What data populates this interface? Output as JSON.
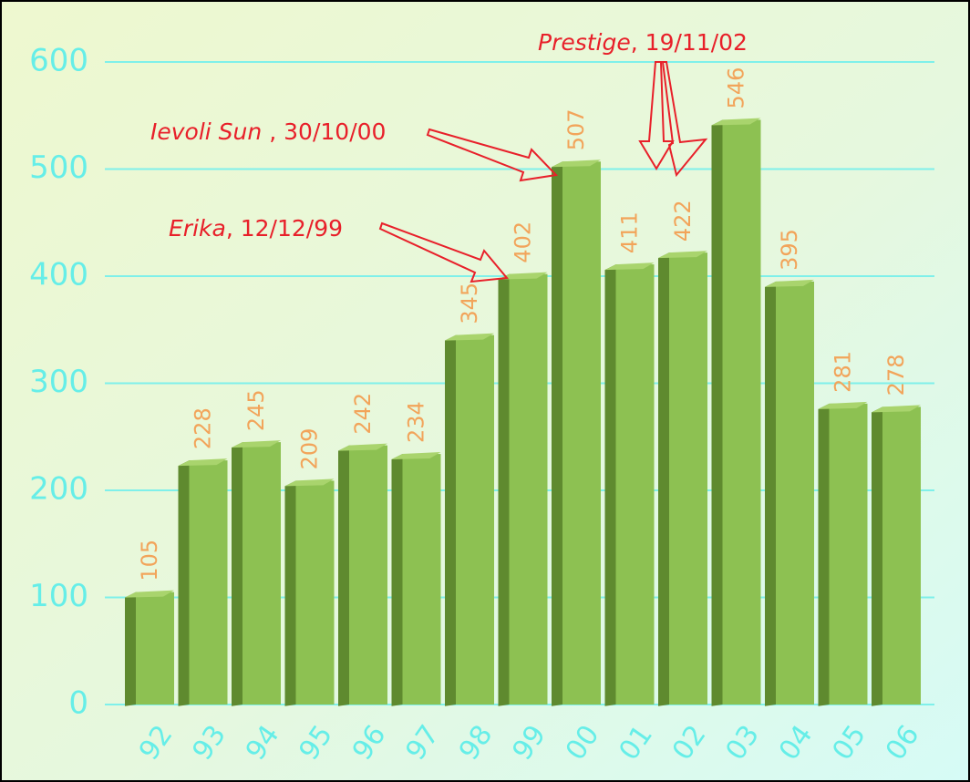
{
  "chart_data": {
    "type": "bar",
    "categories": [
      "92",
      "93",
      "94",
      "95",
      "96",
      "97",
      "98",
      "99",
      "00",
      "01",
      "02",
      "03",
      "04",
      "05",
      "06"
    ],
    "values": [
      105,
      228,
      245,
      209,
      242,
      234,
      345,
      402,
      507,
      411,
      422,
      546,
      395,
      281,
      278
    ],
    "color": "#8dc152",
    "ylim": [
      0,
      600
    ],
    "yticks": [
      0,
      100,
      200,
      300,
      400,
      500,
      600
    ],
    "grid": true,
    "annotations": [
      {
        "name": "Ievoli Sun",
        "date": ", 30/10/00"
      },
      {
        "name": "Erika",
        "date": ", 12/12/99"
      },
      {
        "name": "Prestige",
        "date": ", 19/11/02"
      }
    ]
  }
}
